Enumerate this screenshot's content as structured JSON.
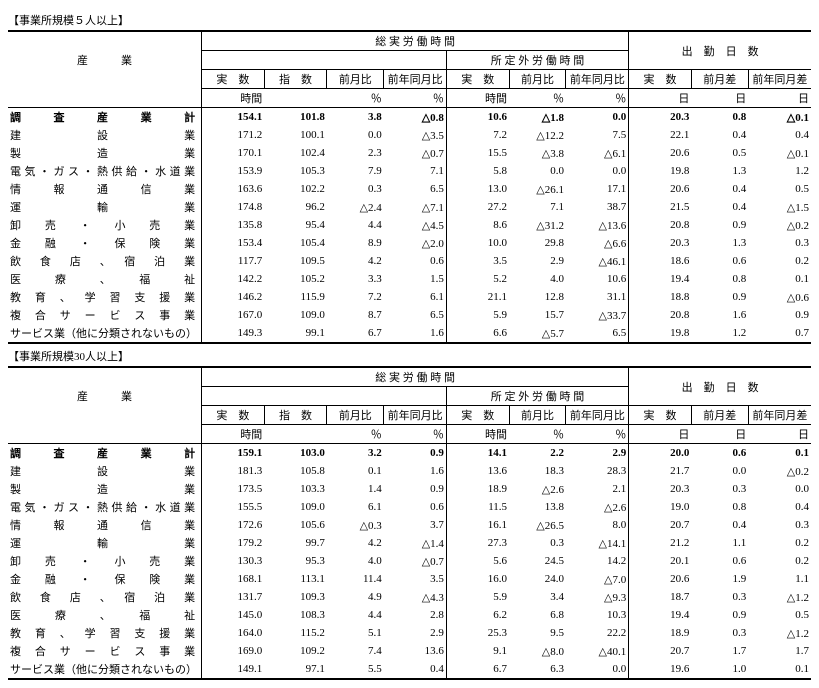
{
  "tables": [
    {
      "title": "【事業所規模５人以上】",
      "header_rows": {
        "industry": "産　　　業",
        "total_hours": "総 実 労 働 時 間",
        "ot_hours": "所 定 外 労 働 時 間",
        "work_days": "出　勤　日　数",
        "jissu": "実　数",
        "shisu": "指　数",
        "zengetsu": "前月比",
        "zennen": "前年同月比",
        "zengetsusa": "前月差",
        "zennensa": "前年同月差",
        "u_hours": "時間",
        "u_pct": "％",
        "u_days": "日"
      },
      "rows": [
        {
          "name": "調　査　産　業　計",
          "bold": true,
          "v": [
            "154.1",
            "101.8",
            "3.8",
            "△0.8",
            "10.6",
            "△1.8",
            "0.0",
            "20.3",
            "0.8",
            "△0.1"
          ]
        },
        {
          "name": "建　　　　　設　　　　　業",
          "v": [
            "171.2",
            "100.1",
            "0.0",
            "△3.5",
            "7.2",
            "△12.2",
            "7.5",
            "22.1",
            "0.4",
            "0.4"
          ]
        },
        {
          "name": "製　　　　　造　　　　　業",
          "v": [
            "170.1",
            "102.4",
            "2.3",
            "△0.7",
            "15.5",
            "△3.8",
            "△6.1",
            "20.6",
            "0.5",
            "△0.1"
          ]
        },
        {
          "name": "電気・ガス・熱供給・水道業",
          "v": [
            "153.9",
            "105.3",
            "7.9",
            "7.1",
            "5.8",
            "0.0",
            "0.0",
            "19.8",
            "1.3",
            "1.2"
          ]
        },
        {
          "name": "情　報　通　信　業",
          "v": [
            "163.6",
            "102.2",
            "0.3",
            "6.5",
            "13.0",
            "△26.1",
            "17.1",
            "20.6",
            "0.4",
            "0.5"
          ]
        },
        {
          "name": "運　　　　　輸　　　　　業",
          "v": [
            "174.8",
            "96.2",
            "△2.4",
            "△7.1",
            "27.2",
            "7.1",
            "38.7",
            "21.5",
            "0.4",
            "△1.5"
          ]
        },
        {
          "name": "卸　売　・　小　売　業",
          "v": [
            "135.8",
            "95.4",
            "4.4",
            "△4.5",
            "8.6",
            "△31.2",
            "△13.6",
            "20.8",
            "0.9",
            "△0.2"
          ]
        },
        {
          "name": "金　融　・　保　険　業",
          "v": [
            "153.4",
            "105.4",
            "8.9",
            "△2.0",
            "10.0",
            "29.8",
            "△6.6",
            "20.3",
            "1.3",
            "0.3"
          ]
        },
        {
          "name": "飲　食　店　、　宿　泊　業",
          "v": [
            "117.7",
            "109.5",
            "4.2",
            "0.6",
            "3.5",
            "2.9",
            "△46.1",
            "18.6",
            "0.6",
            "0.2"
          ]
        },
        {
          "name": "医　療　、　福　祉",
          "v": [
            "142.2",
            "105.2",
            "3.3",
            "1.5",
            "5.2",
            "4.0",
            "10.6",
            "19.4",
            "0.8",
            "0.1"
          ]
        },
        {
          "name": "教 育 、 学 習 支 援 業",
          "v": [
            "146.2",
            "115.9",
            "7.2",
            "6.1",
            "21.1",
            "12.8",
            "31.1",
            "18.8",
            "0.9",
            "△0.6"
          ]
        },
        {
          "name": "複 合 サ ー ビ ス 事 業",
          "v": [
            "167.0",
            "109.0",
            "8.7",
            "6.5",
            "5.9",
            "15.7",
            "△33.7",
            "20.8",
            "1.6",
            "0.9"
          ]
        },
        {
          "name": "サービス業（他に分類されないもの）",
          "v": [
            "149.3",
            "99.1",
            "6.7",
            "1.6",
            "6.6",
            "△5.7",
            "6.5",
            "19.8",
            "1.2",
            "0.7"
          ]
        }
      ]
    },
    {
      "title": "【事業所規模30人以上】",
      "header_rows": {
        "industry": "産　　　業",
        "total_hours": "総 実 労 働 時 間",
        "ot_hours": "所 定 外 労 働 時 間",
        "work_days": "出　勤　日　数",
        "jissu": "実　数",
        "shisu": "指　数",
        "zengetsu": "前月比",
        "zennen": "前年同月比",
        "zengetsusa": "前月差",
        "zennensa": "前年同月差",
        "u_hours": "時間",
        "u_pct": "％",
        "u_days": "日"
      },
      "rows": [
        {
          "name": "調　査　産　業　計",
          "bold": true,
          "v": [
            "159.1",
            "103.0",
            "3.2",
            "0.9",
            "14.1",
            "2.2",
            "2.9",
            "20.0",
            "0.6",
            "0.1"
          ]
        },
        {
          "name": "建　　　　　設　　　　　業",
          "v": [
            "181.3",
            "105.8",
            "0.1",
            "1.6",
            "13.6",
            "18.3",
            "28.3",
            "21.7",
            "0.0",
            "△0.2"
          ]
        },
        {
          "name": "製　　　　　造　　　　　業",
          "v": [
            "173.5",
            "103.3",
            "1.4",
            "0.9",
            "18.9",
            "△2.6",
            "2.1",
            "20.3",
            "0.3",
            "0.0"
          ]
        },
        {
          "name": "電気・ガス・熱供給・水道業",
          "v": [
            "155.5",
            "109.0",
            "6.1",
            "0.6",
            "11.5",
            "13.8",
            "△2.6",
            "19.0",
            "0.8",
            "0.4"
          ]
        },
        {
          "name": "情　報　通　信　業",
          "v": [
            "172.6",
            "105.6",
            "△0.3",
            "3.7",
            "16.1",
            "△26.5",
            "8.0",
            "20.7",
            "0.4",
            "0.3"
          ]
        },
        {
          "name": "運　　　　　輸　　　　　業",
          "v": [
            "179.2",
            "99.7",
            "4.2",
            "△1.4",
            "27.3",
            "0.3",
            "△14.1",
            "21.2",
            "1.1",
            "0.2"
          ]
        },
        {
          "name": "卸　売　・　小　売　業",
          "v": [
            "130.3",
            "95.3",
            "4.0",
            "△0.7",
            "5.6",
            "24.5",
            "14.2",
            "20.1",
            "0.6",
            "0.2"
          ]
        },
        {
          "name": "金　融　・　保　険　業",
          "v": [
            "168.1",
            "113.1",
            "11.4",
            "3.5",
            "16.0",
            "24.0",
            "△7.0",
            "20.6",
            "1.9",
            "1.1"
          ]
        },
        {
          "name": "飲　食　店　、　宿　泊　業",
          "v": [
            "131.7",
            "109.3",
            "4.9",
            "△4.3",
            "5.9",
            "3.4",
            "△9.3",
            "18.7",
            "0.3",
            "△1.2"
          ]
        },
        {
          "name": "医　療　、　福　祉",
          "v": [
            "145.0",
            "108.3",
            "4.4",
            "2.8",
            "6.2",
            "6.8",
            "10.3",
            "19.4",
            "0.9",
            "0.5"
          ]
        },
        {
          "name": "教 育 、 学 習 支 援 業",
          "v": [
            "164.0",
            "115.2",
            "5.1",
            "2.9",
            "25.3",
            "9.5",
            "22.2",
            "18.9",
            "0.3",
            "△1.2"
          ]
        },
        {
          "name": "複 合 サ ー ビ ス 事 業",
          "v": [
            "169.0",
            "109.2",
            "7.4",
            "13.6",
            "9.1",
            "△8.0",
            "△40.1",
            "20.7",
            "1.7",
            "1.7"
          ]
        },
        {
          "name": "サービス業（他に分類されないもの）",
          "v": [
            "149.1",
            "97.1",
            "5.5",
            "0.4",
            "6.7",
            "6.3",
            "0.0",
            "19.6",
            "1.0",
            "0.1"
          ]
        }
      ]
    }
  ]
}
